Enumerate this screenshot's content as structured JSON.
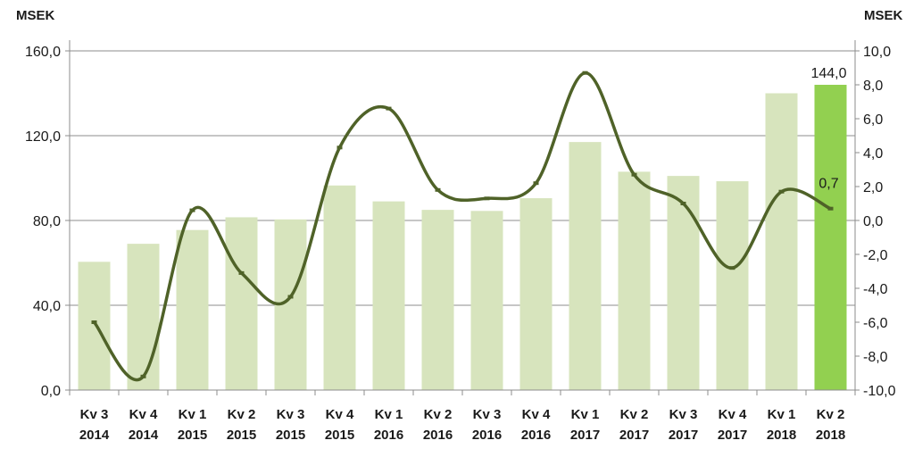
{
  "chart_data": {
    "type": "bar",
    "categories": [
      [
        "Kv 3",
        "2014"
      ],
      [
        "Kv 4",
        "2014"
      ],
      [
        "Kv 1",
        "2015"
      ],
      [
        "Kv 2",
        "2015"
      ],
      [
        "Kv 3",
        "2015"
      ],
      [
        "Kv 4",
        "2015"
      ],
      [
        "Kv 1",
        "2016"
      ],
      [
        "Kv 2",
        "2016"
      ],
      [
        "Kv 3",
        "2016"
      ],
      [
        "Kv 4",
        "2016"
      ],
      [
        "Kv 1",
        "2017"
      ],
      [
        "Kv 2",
        "2017"
      ],
      [
        "Kv 3",
        "2017"
      ],
      [
        "Kv 4",
        "2017"
      ],
      [
        "Kv 1",
        "2018"
      ],
      [
        "Kv 2",
        "2018"
      ]
    ],
    "series": [
      {
        "type": "bar",
        "axis": "left",
        "values": [
          60.5,
          69.0,
          75.5,
          81.5,
          80.5,
          96.5,
          89.0,
          85.0,
          84.5,
          90.5,
          117.0,
          103.0,
          101.0,
          98.5,
          140.0,
          144.0
        ],
        "color": "#d7e4bd",
        "highlight_color": "#92d050",
        "highlight_index": 15,
        "data_labels": {
          "15": "144,0"
        }
      },
      {
        "type": "line",
        "smooth": true,
        "axis": "right",
        "values": [
          -6.0,
          -9.2,
          0.6,
          -3.1,
          -4.5,
          4.3,
          6.6,
          1.8,
          1.3,
          2.2,
          8.7,
          2.7,
          1.0,
          -2.8,
          1.7,
          0.7
        ],
        "color": "#4f6228",
        "data_labels": {
          "15": "0,7"
        }
      }
    ],
    "left_axis": {
      "label": "MSEK",
      "range": [
        0,
        160
      ],
      "ticks": [
        "0,0",
        "40,0",
        "80,0",
        "120,0",
        "160,0"
      ],
      "tick_values": [
        0,
        40,
        80,
        120,
        160
      ]
    },
    "right_axis": {
      "label": "MSEK",
      "range": [
        -10,
        10
      ],
      "ticks": [
        "-10,0",
        "-8,0",
        "-6,0",
        "-4,0",
        "-2,0",
        "0,0",
        "2,0",
        "4,0",
        "6,0",
        "8,0",
        "10,0"
      ],
      "tick_values": [
        -10,
        -8,
        -6,
        -4,
        -2,
        0,
        2,
        4,
        6,
        8,
        10
      ]
    },
    "grid": true,
    "legend": "none"
  }
}
